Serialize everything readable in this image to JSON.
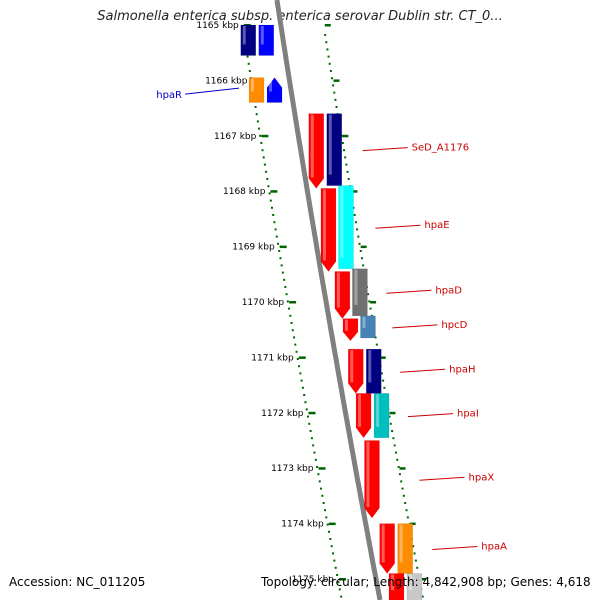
{
  "title": "Salmonella enterica subsp. enterica serovar Dublin str. CT_0...",
  "footer": {
    "accession": "Accession: NC_011205",
    "summary": "Topology: circular; Length: 4,842,908 bp; Genes: 4,618"
  },
  "ticks": [
    "1165 kbp",
    "1166 kbp",
    "1167 kbp",
    "1168 kbp",
    "1169 kbp",
    "1170 kbp",
    "1171 kbp",
    "1172 kbp",
    "1173 kbp",
    "1174 kbp",
    "1175 kbp"
  ],
  "colors": {
    "red": "#ff0000",
    "navy": "#000080",
    "blue": "#0000ff",
    "cyan": "#00ffff",
    "teal": "#00bfbf",
    "gray": "#707070",
    "steelblue": "#4682b4",
    "orange": "#ff8c00",
    "lightgray": "#c8c8c8",
    "backbone": "#808080",
    "tick": "#006400",
    "label_red": "#cc0000",
    "label_blue": "#0000cc"
  },
  "genes": [
    {
      "name": "",
      "kbp_start": 1165.0,
      "kbp_end": 1165.55,
      "track": "outer2",
      "color": "navy",
      "strand": "none"
    },
    {
      "name": "",
      "kbp_start": 1165.0,
      "kbp_end": 1165.55,
      "track": "outer1",
      "color": "blue",
      "strand": "none"
    },
    {
      "name": "hpaR",
      "kbp_start": 1165.95,
      "kbp_end": 1166.4,
      "track": "outer2",
      "color": "orange",
      "strand": "none"
    },
    {
      "name": "",
      "kbp_start": 1165.95,
      "kbp_end": 1166.4,
      "track": "outer1",
      "color": "blue",
      "strand": "reverse"
    },
    {
      "name": "",
      "kbp_start": 1166.6,
      "kbp_end": 1167.95,
      "track": "inner",
      "color": "red",
      "strand": "forward"
    },
    {
      "name": "SeD_A1176",
      "kbp_start": 1166.6,
      "kbp_end": 1167.9,
      "track": "outer1",
      "color": "navy",
      "strand": "none"
    },
    {
      "name": "",
      "kbp_start": 1167.95,
      "kbp_end": 1169.45,
      "track": "inner",
      "color": "red",
      "strand": "forward"
    },
    {
      "name": "hpaE",
      "kbp_start": 1167.9,
      "kbp_end": 1169.4,
      "track": "outer1",
      "color": "cyan",
      "strand": "none"
    },
    {
      "name": "",
      "kbp_start": 1169.45,
      "kbp_end": 1170.3,
      "track": "inner",
      "color": "red",
      "strand": "forward"
    },
    {
      "name": "hpaD",
      "kbp_start": 1169.4,
      "kbp_end": 1170.25,
      "track": "outer1",
      "color": "gray",
      "strand": "none"
    },
    {
      "name": "",
      "kbp_start": 1170.3,
      "kbp_end": 1170.7,
      "track": "inner",
      "color": "red",
      "strand": "forward"
    },
    {
      "name": "hpcD",
      "kbp_start": 1170.25,
      "kbp_end": 1170.65,
      "track": "outer1",
      "color": "steelblue",
      "strand": "none"
    },
    {
      "name": "",
      "kbp_start": 1170.85,
      "kbp_end": 1171.65,
      "track": "inner",
      "color": "red",
      "strand": "forward"
    },
    {
      "name": "hpaH",
      "kbp_start": 1170.85,
      "kbp_end": 1171.65,
      "track": "outer1",
      "color": "navy",
      "strand": "none"
    },
    {
      "name": "",
      "kbp_start": 1171.65,
      "kbp_end": 1172.45,
      "track": "inner",
      "color": "red",
      "strand": "forward"
    },
    {
      "name": "hpaI",
      "kbp_start": 1171.65,
      "kbp_end": 1172.45,
      "track": "outer1",
      "color": "teal",
      "strand": "none"
    },
    {
      "name": "hpaX",
      "kbp_start": 1172.5,
      "kbp_end": 1173.9,
      "track": "inner",
      "color": "red",
      "strand": "forward"
    },
    {
      "name": "",
      "kbp_start": 1174.0,
      "kbp_end": 1174.9,
      "track": "inner",
      "color": "red",
      "strand": "forward"
    },
    {
      "name": "hpaA",
      "kbp_start": 1174.0,
      "kbp_end": 1174.9,
      "track": "outer1",
      "color": "orange",
      "strand": "none"
    },
    {
      "name": "",
      "kbp_start": 1174.9,
      "kbp_end": 1175.4,
      "track": "inner",
      "color": "red",
      "strand": "none"
    },
    {
      "name": "",
      "kbp_start": 1174.9,
      "kbp_end": 1175.4,
      "track": "outer1",
      "color": "lightgray",
      "strand": "none"
    }
  ]
}
